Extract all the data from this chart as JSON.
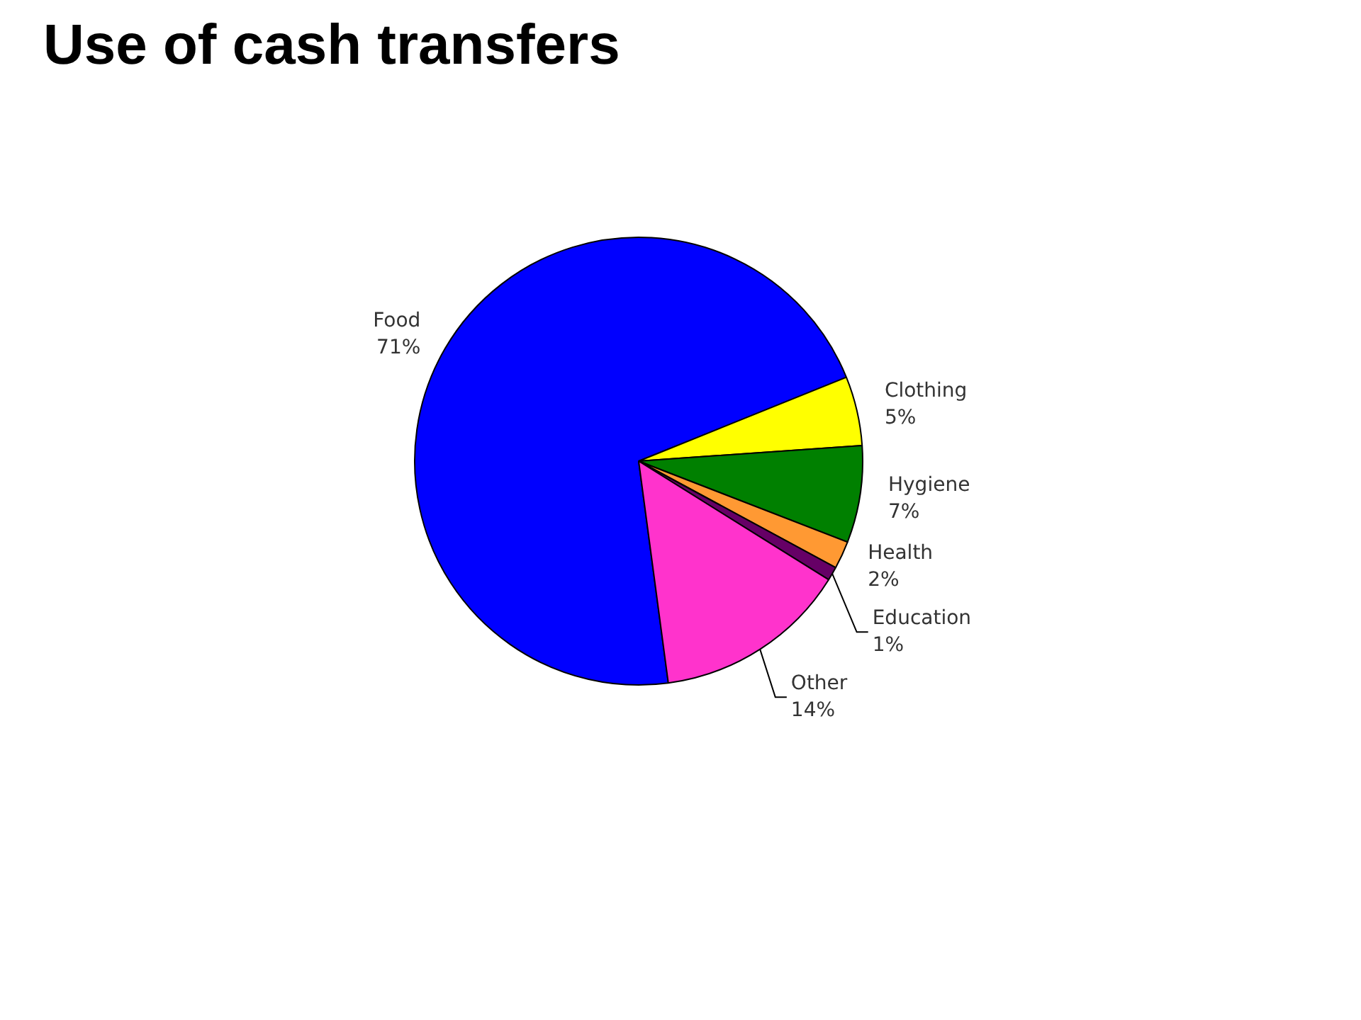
{
  "chart_data": {
    "type": "pie",
    "title": "Use of cash transfers",
    "categories": [
      "Food",
      "Clothing",
      "Hygiene",
      "Health",
      "Education",
      "Other"
    ],
    "values": [
      71,
      5,
      7,
      2,
      1,
      14
    ],
    "value_labels": [
      "71%",
      "5%",
      "7%",
      "2%",
      "1%",
      "14%"
    ],
    "colors": [
      "#0000ff",
      "#ffff00",
      "#008000",
      "#ff9933",
      "#660066",
      "#ff33cc"
    ]
  }
}
